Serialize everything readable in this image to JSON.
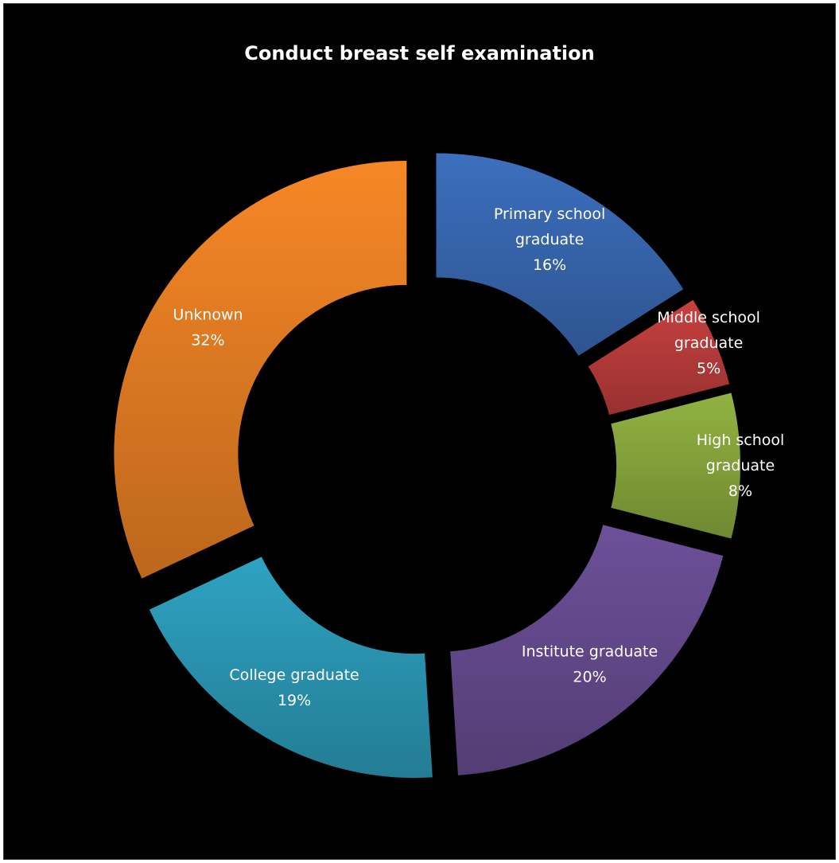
{
  "chart_data": {
    "type": "pie",
    "variant": "donut-exploded",
    "title": "Conduct breast self examination",
    "legend": "none",
    "slices": [
      {
        "label": "Primary school graduate",
        "value": 16,
        "percent_label": "16%",
        "color": "#3867b0"
      },
      {
        "label": "Middle school graduate",
        "value": 5,
        "percent_label": "5%",
        "color": "#b83c3a"
      },
      {
        "label": "High school graduate",
        "value": 8,
        "percent_label": "8%",
        "color": "#86a63c"
      },
      {
        "label": "Institute graduate",
        "value": 20,
        "percent_label": "20%",
        "color": "#654a8e"
      },
      {
        "label": "College graduate",
        "value": 19,
        "percent_label": "19%",
        "color": "#2b97b4"
      },
      {
        "label": "Unknown",
        "value": 32,
        "percent_label": "32%",
        "color": "#e57d23"
      }
    ]
  }
}
